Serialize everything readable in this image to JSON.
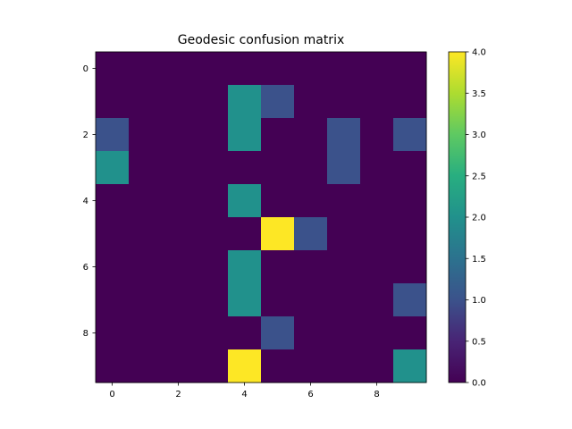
{
  "chart_data": {
    "type": "heatmap",
    "title": "Geodesic confusion matrix",
    "xlabel": "",
    "ylabel": "",
    "rows": 10,
    "cols": 10,
    "x_ticks": [
      0,
      2,
      4,
      6,
      8
    ],
    "y_ticks": [
      0,
      2,
      4,
      6,
      8
    ],
    "values": [
      [
        0,
        0,
        0,
        0,
        0,
        0,
        0,
        0,
        0,
        0
      ],
      [
        0,
        0,
        0,
        0,
        2,
        1,
        0,
        0,
        0,
        0
      ],
      [
        1,
        0,
        0,
        0,
        2,
        0,
        0,
        1,
        0,
        1
      ],
      [
        2,
        0,
        0,
        0,
        0,
        0,
        0,
        1,
        0,
        0
      ],
      [
        0,
        0,
        0,
        0,
        2,
        0,
        0,
        0,
        0,
        0
      ],
      [
        0,
        0,
        0,
        0,
        0,
        4,
        1,
        0,
        0,
        0
      ],
      [
        0,
        0,
        0,
        0,
        2,
        0,
        0,
        0,
        0,
        0
      ],
      [
        0,
        0,
        0,
        0,
        2,
        0,
        0,
        0,
        0,
        1
      ],
      [
        0,
        0,
        0,
        0,
        0,
        1,
        0,
        0,
        0,
        0
      ],
      [
        0,
        0,
        0,
        0,
        4,
        0,
        0,
        0,
        0,
        2
      ]
    ],
    "vmin": 0,
    "vmax": 4,
    "colormap": "viridis",
    "colorbar": {
      "ticks": [
        0.0,
        0.5,
        1.0,
        1.5,
        2.0,
        2.5,
        3.0,
        3.5,
        4.0
      ],
      "tick_labels": [
        "0.0",
        "0.5",
        "1.0",
        "1.5",
        "2.0",
        "2.5",
        "3.0",
        "3.5",
        "4.0"
      ]
    }
  }
}
